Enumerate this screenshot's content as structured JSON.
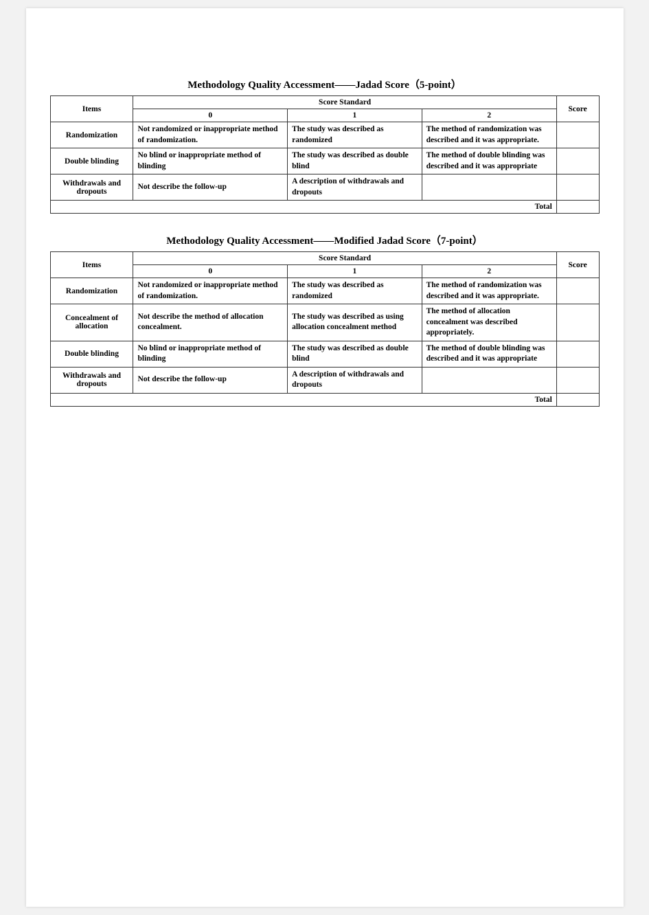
{
  "page_bg": "#f2f2f2",
  "paper_bg": "#ffffff",
  "border_color": "#333333",
  "table1": {
    "title": "Methodology Quality Accessment——Jadad Score（5-point）",
    "header_items": "Items",
    "header_score_standard": "Score Standard",
    "header_score": "Score",
    "score_labels": [
      "0",
      "1",
      "2"
    ],
    "rows": [
      {
        "item": "Randomization",
        "c0": "Not randomized or inappropriate method of randomization.",
        "c1": "The study was described as randomized",
        "c2": "The method of randomization was described and it was appropriate.",
        "score": ""
      },
      {
        "item": "Double blinding",
        "c0": "No blind or inappropriate method of blinding",
        "c1": "The study was described as double blind",
        "c2": "The method of double blinding was described and it was appropriate",
        "score": ""
      },
      {
        "item": "Withdrawals and dropouts",
        "c0": "Not describe the follow-up",
        "c1": "A description of withdrawals and dropouts",
        "c2": "",
        "score": ""
      }
    ],
    "total_label": "Total",
    "total_value": ""
  },
  "table2": {
    "title": "Methodology Quality Accessment——Modified Jadad Score（7-point）",
    "header_items": "Items",
    "header_score_standard": "Score Standard",
    "header_score": "Score",
    "score_labels": [
      "0",
      "1",
      "2"
    ],
    "rows": [
      {
        "item": "Randomization",
        "c0": "Not randomized or inappropriate method of randomization.",
        "c1": "The study was described as randomized",
        "c2": "The method of randomization was described and it was appropriate.",
        "score": ""
      },
      {
        "item": "Concealment of allocation",
        "c0": "Not describe the method of allocation concealment.",
        "c1": "The study was described as using allocation concealment method",
        "c2": "The method of allocation concealment was described appropriately.",
        "score": ""
      },
      {
        "item": "Double blinding",
        "c0": "No blind or inappropriate method of blinding",
        "c1": "The study was described as double blind",
        "c2": "The method of double blinding was described and it was appropriate",
        "score": ""
      },
      {
        "item": "Withdrawals and dropouts",
        "c0": "Not describe the follow-up",
        "c1": "A description of withdrawals and dropouts",
        "c2": "",
        "score": ""
      }
    ],
    "total_label": "Total",
    "total_value": ""
  }
}
